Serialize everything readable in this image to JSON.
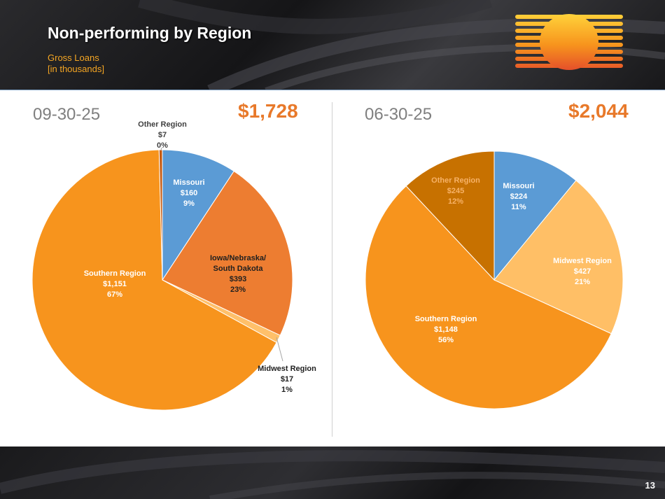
{
  "header": {
    "title": "Non-performing by Region",
    "subtitle_line1": "Gross Loans",
    "subtitle_line2": "[in thousands]"
  },
  "page_number": "13",
  "colors": {
    "missouri": "#5b9bd5",
    "iowa": "#ed7d31",
    "midwest_sep": "#ffc06a",
    "southern": "#f7941d",
    "other_sep": "#c55a11",
    "midwest_jun": "#ffbf66",
    "other_jun": "#c77100",
    "total": "#e8792a"
  },
  "chart_data": [
    {
      "type": "pie",
      "period": "09-30-25",
      "total": "$1,728",
      "slices": [
        {
          "name": "Missouri",
          "amount": "$160",
          "percent": "9%",
          "value": 160
        },
        {
          "name": "Iowa/Nebraska/ South Dakota",
          "name_line1": "Iowa/Nebraska/",
          "name_line2": "South Dakota",
          "amount": "$393",
          "percent": "23%",
          "value": 393
        },
        {
          "name": "Midwest Region",
          "amount": "$17",
          "percent": "1%",
          "value": 17
        },
        {
          "name": "Southern Region",
          "amount": "$1,151",
          "percent": "67%",
          "value": 1151
        },
        {
          "name": "Other Region",
          "amount": "$7",
          "percent": "0%",
          "value": 7
        }
      ]
    },
    {
      "type": "pie",
      "period": "06-30-25",
      "total": "$2,044",
      "slices": [
        {
          "name": "Missouri",
          "amount": "$224",
          "percent": "11%",
          "value": 224
        },
        {
          "name": "Midwest Region",
          "amount": "$427",
          "percent": "21%",
          "value": 427
        },
        {
          "name": "Southern Region",
          "amount": "$1,148",
          "percent": "56%",
          "value": 1148
        },
        {
          "name": "Other Region",
          "amount": "$245",
          "percent": "12%",
          "value": 245
        }
      ]
    }
  ]
}
